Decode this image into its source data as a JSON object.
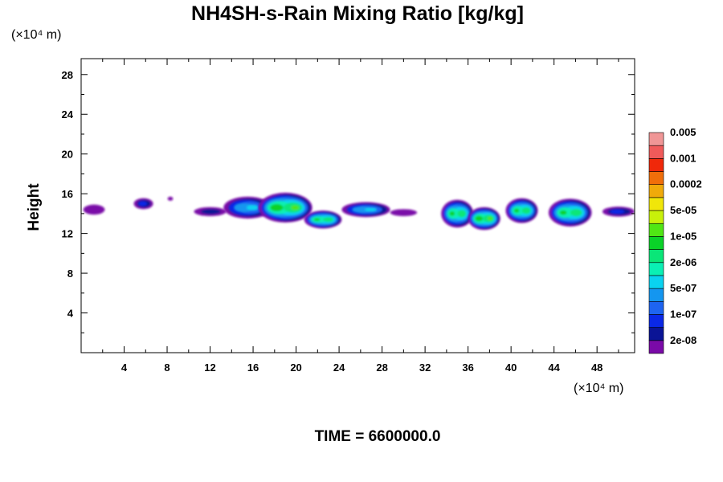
{
  "chart_data": {
    "type": "heatmap",
    "title": "NH4SH-s-Rain Mixing Ratio [kg/kg]",
    "ylabel": "Height",
    "x_unit": "(×10⁴ m)",
    "y_unit": "(×10⁴ m)",
    "xlim": [
      0,
      51.5
    ],
    "ylim": [
      0,
      29.6
    ],
    "x_ticks": [
      "4",
      "8",
      "12",
      "16",
      "20",
      "24",
      "28",
      "32",
      "36",
      "40",
      "44",
      "48"
    ],
    "y_ticks": [
      "4",
      "8",
      "12",
      "16",
      "20",
      "24",
      "28"
    ],
    "x_tick_values": [
      4,
      8,
      12,
      16,
      20,
      24,
      28,
      32,
      36,
      40,
      44,
      48
    ],
    "y_tick_values": [
      4,
      8,
      12,
      16,
      20,
      24,
      28
    ],
    "time_label": "TIME = 6600000.0",
    "colorbar": {
      "colors": [
        "#7a0aa8",
        "#0a1496",
        "#0a28e6",
        "#1e64f0",
        "#1496f0",
        "#0ad2f0",
        "#0af0b4",
        "#0ae678",
        "#0ad228",
        "#50e614",
        "#c8f00a",
        "#f0e60a",
        "#f0aa0a",
        "#f06e0a",
        "#f0280a",
        "#f05a5a",
        "#f09696"
      ],
      "labels": [
        "2e-08",
        "1e-07",
        "5e-07",
        "2e-06",
        "1e-05",
        "5e-05",
        "0.0002",
        "0.001",
        "0.005"
      ]
    },
    "cloud_clusters": [
      {
        "x": 1.2,
        "y": 14.4,
        "width": 2.0,
        "height": 1.0,
        "level": 0
      },
      {
        "x": 5.8,
        "y": 15.0,
        "width": 1.8,
        "height": 1.1,
        "level": 2
      },
      {
        "x": 8.3,
        "y": 15.5,
        "width": 0.5,
        "height": 0.4,
        "level": 0
      },
      {
        "x": 12.0,
        "y": 14.2,
        "width": 3.0,
        "height": 0.9,
        "level": 1
      },
      {
        "x": 15.5,
        "y": 14.6,
        "width": 4.5,
        "height": 2.2,
        "level": 5
      },
      {
        "x": 19.0,
        "y": 14.6,
        "width": 5.0,
        "height": 3.0,
        "level": 9
      },
      {
        "x": 22.5,
        "y": 13.4,
        "width": 3.5,
        "height": 1.8,
        "level": 8
      },
      {
        "x": 26.5,
        "y": 14.4,
        "width": 4.5,
        "height": 1.5,
        "level": 5
      },
      {
        "x": 30.0,
        "y": 14.1,
        "width": 2.5,
        "height": 0.7,
        "level": 0
      },
      {
        "x": 35.0,
        "y": 14.0,
        "width": 3.0,
        "height": 2.8,
        "level": 8
      },
      {
        "x": 37.5,
        "y": 13.5,
        "width": 3.0,
        "height": 2.3,
        "level": 9
      },
      {
        "x": 41.0,
        "y": 14.3,
        "width": 3.0,
        "height": 2.5,
        "level": 8
      },
      {
        "x": 45.5,
        "y": 14.1,
        "width": 4.0,
        "height": 2.8,
        "level": 8
      },
      {
        "x": 50.0,
        "y": 14.2,
        "width": 3.0,
        "height": 1.0,
        "level": 2
      }
    ]
  }
}
